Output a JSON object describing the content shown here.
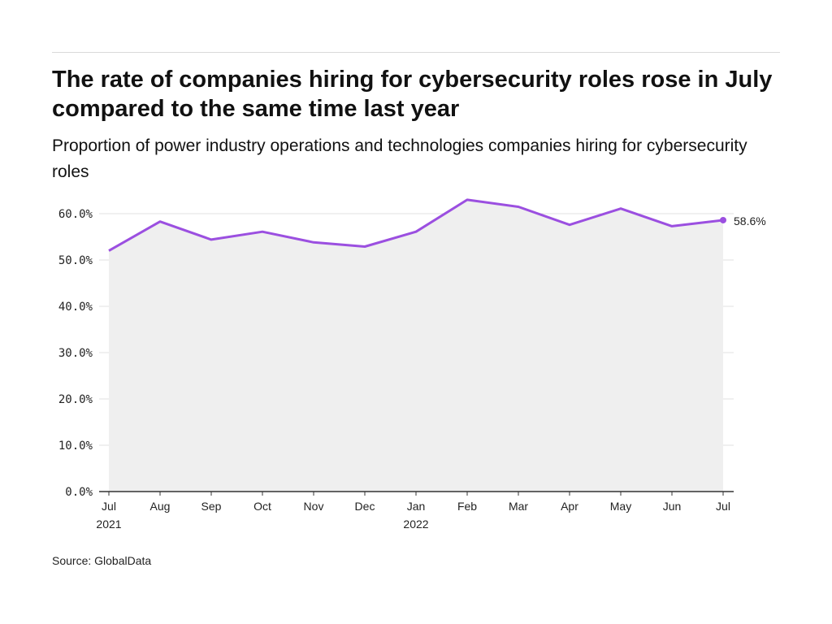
{
  "title": "The rate of companies hiring for cybersecurity roles rose in July compared to the same time last year",
  "subtitle": "Proportion of power industry operations and technologies companies hiring for cybersecurity roles",
  "source": "Source: GlobalData",
  "colors": {
    "line": "#9b4fe0",
    "area": "#efefef",
    "grid": "#e0e0e0",
    "axis": "#333333"
  },
  "chart_data": {
    "type": "area",
    "x": [
      "Jul",
      "Aug",
      "Sep",
      "Oct",
      "Nov",
      "Dec",
      "Jan",
      "Feb",
      "Mar",
      "Apr",
      "May",
      "Jun",
      "Jul"
    ],
    "x_sublabels": [
      "2021",
      "",
      "",
      "",
      "",
      "",
      "2022",
      "",
      "",
      "",
      "",
      "",
      ""
    ],
    "series": [
      {
        "values": [
          52.0,
          58.3,
          54.4,
          56.1,
          53.8,
          52.9,
          56.1,
          63.0,
          61.5,
          57.6,
          61.1,
          57.3,
          58.6
        ]
      }
    ],
    "y_ticks": [
      "0.0%",
      "10.0%",
      "20.0%",
      "30.0%",
      "40.0%",
      "50.0%",
      "60.0%"
    ],
    "ylim": [
      0,
      60
    ],
    "end_label": "58.6%",
    "grid": true
  }
}
